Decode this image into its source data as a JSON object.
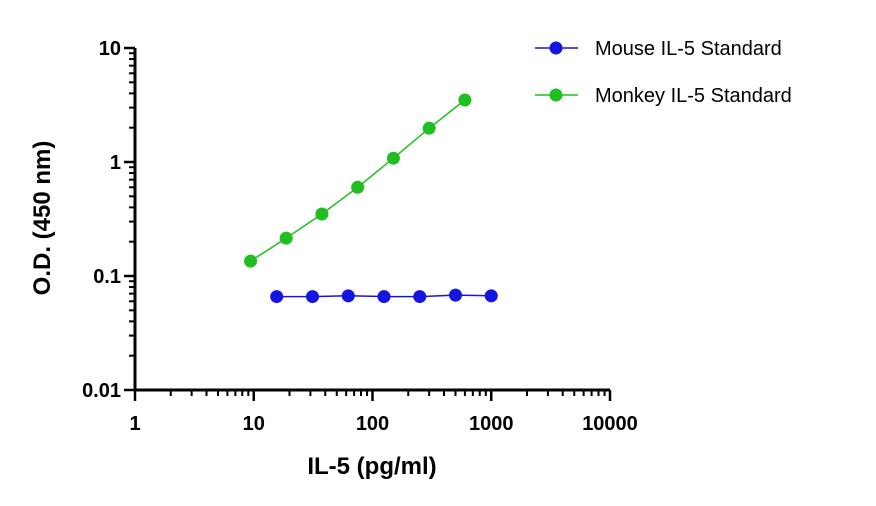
{
  "chart_data": {
    "type": "scatter",
    "title": "",
    "xlabel": "IL-5 (pg/ml)",
    "ylabel": "O.D. (450 nm)",
    "x_scale": "log",
    "y_scale": "log",
    "xlim": [
      1,
      10000
    ],
    "ylim": [
      0.01,
      10
    ],
    "x_ticks": [
      1,
      10,
      100,
      1000,
      10000
    ],
    "x_tick_labels": [
      "1",
      "10",
      "100",
      "1000",
      "10000"
    ],
    "y_ticks": [
      0.01,
      0.1,
      1,
      10
    ],
    "y_tick_labels": [
      "0.01",
      "0.1",
      "1",
      "10"
    ],
    "grid": false,
    "legend_position": "top-right",
    "series": [
      {
        "name": "Mouse IL-5 Standard",
        "color": "#1515e0",
        "x": [
          15.6,
          31.25,
          62.5,
          125,
          250,
          500,
          1000
        ],
        "y": [
          0.066,
          0.066,
          0.067,
          0.066,
          0.066,
          0.068,
          0.067
        ]
      },
      {
        "name": "Monkey IL-5 Standard",
        "color": "#1fbf1f",
        "x": [
          9.4,
          18.75,
          37.5,
          75,
          150,
          300,
          600
        ],
        "y": [
          0.135,
          0.215,
          0.35,
          0.6,
          1.08,
          1.98,
          3.5
        ]
      }
    ]
  }
}
